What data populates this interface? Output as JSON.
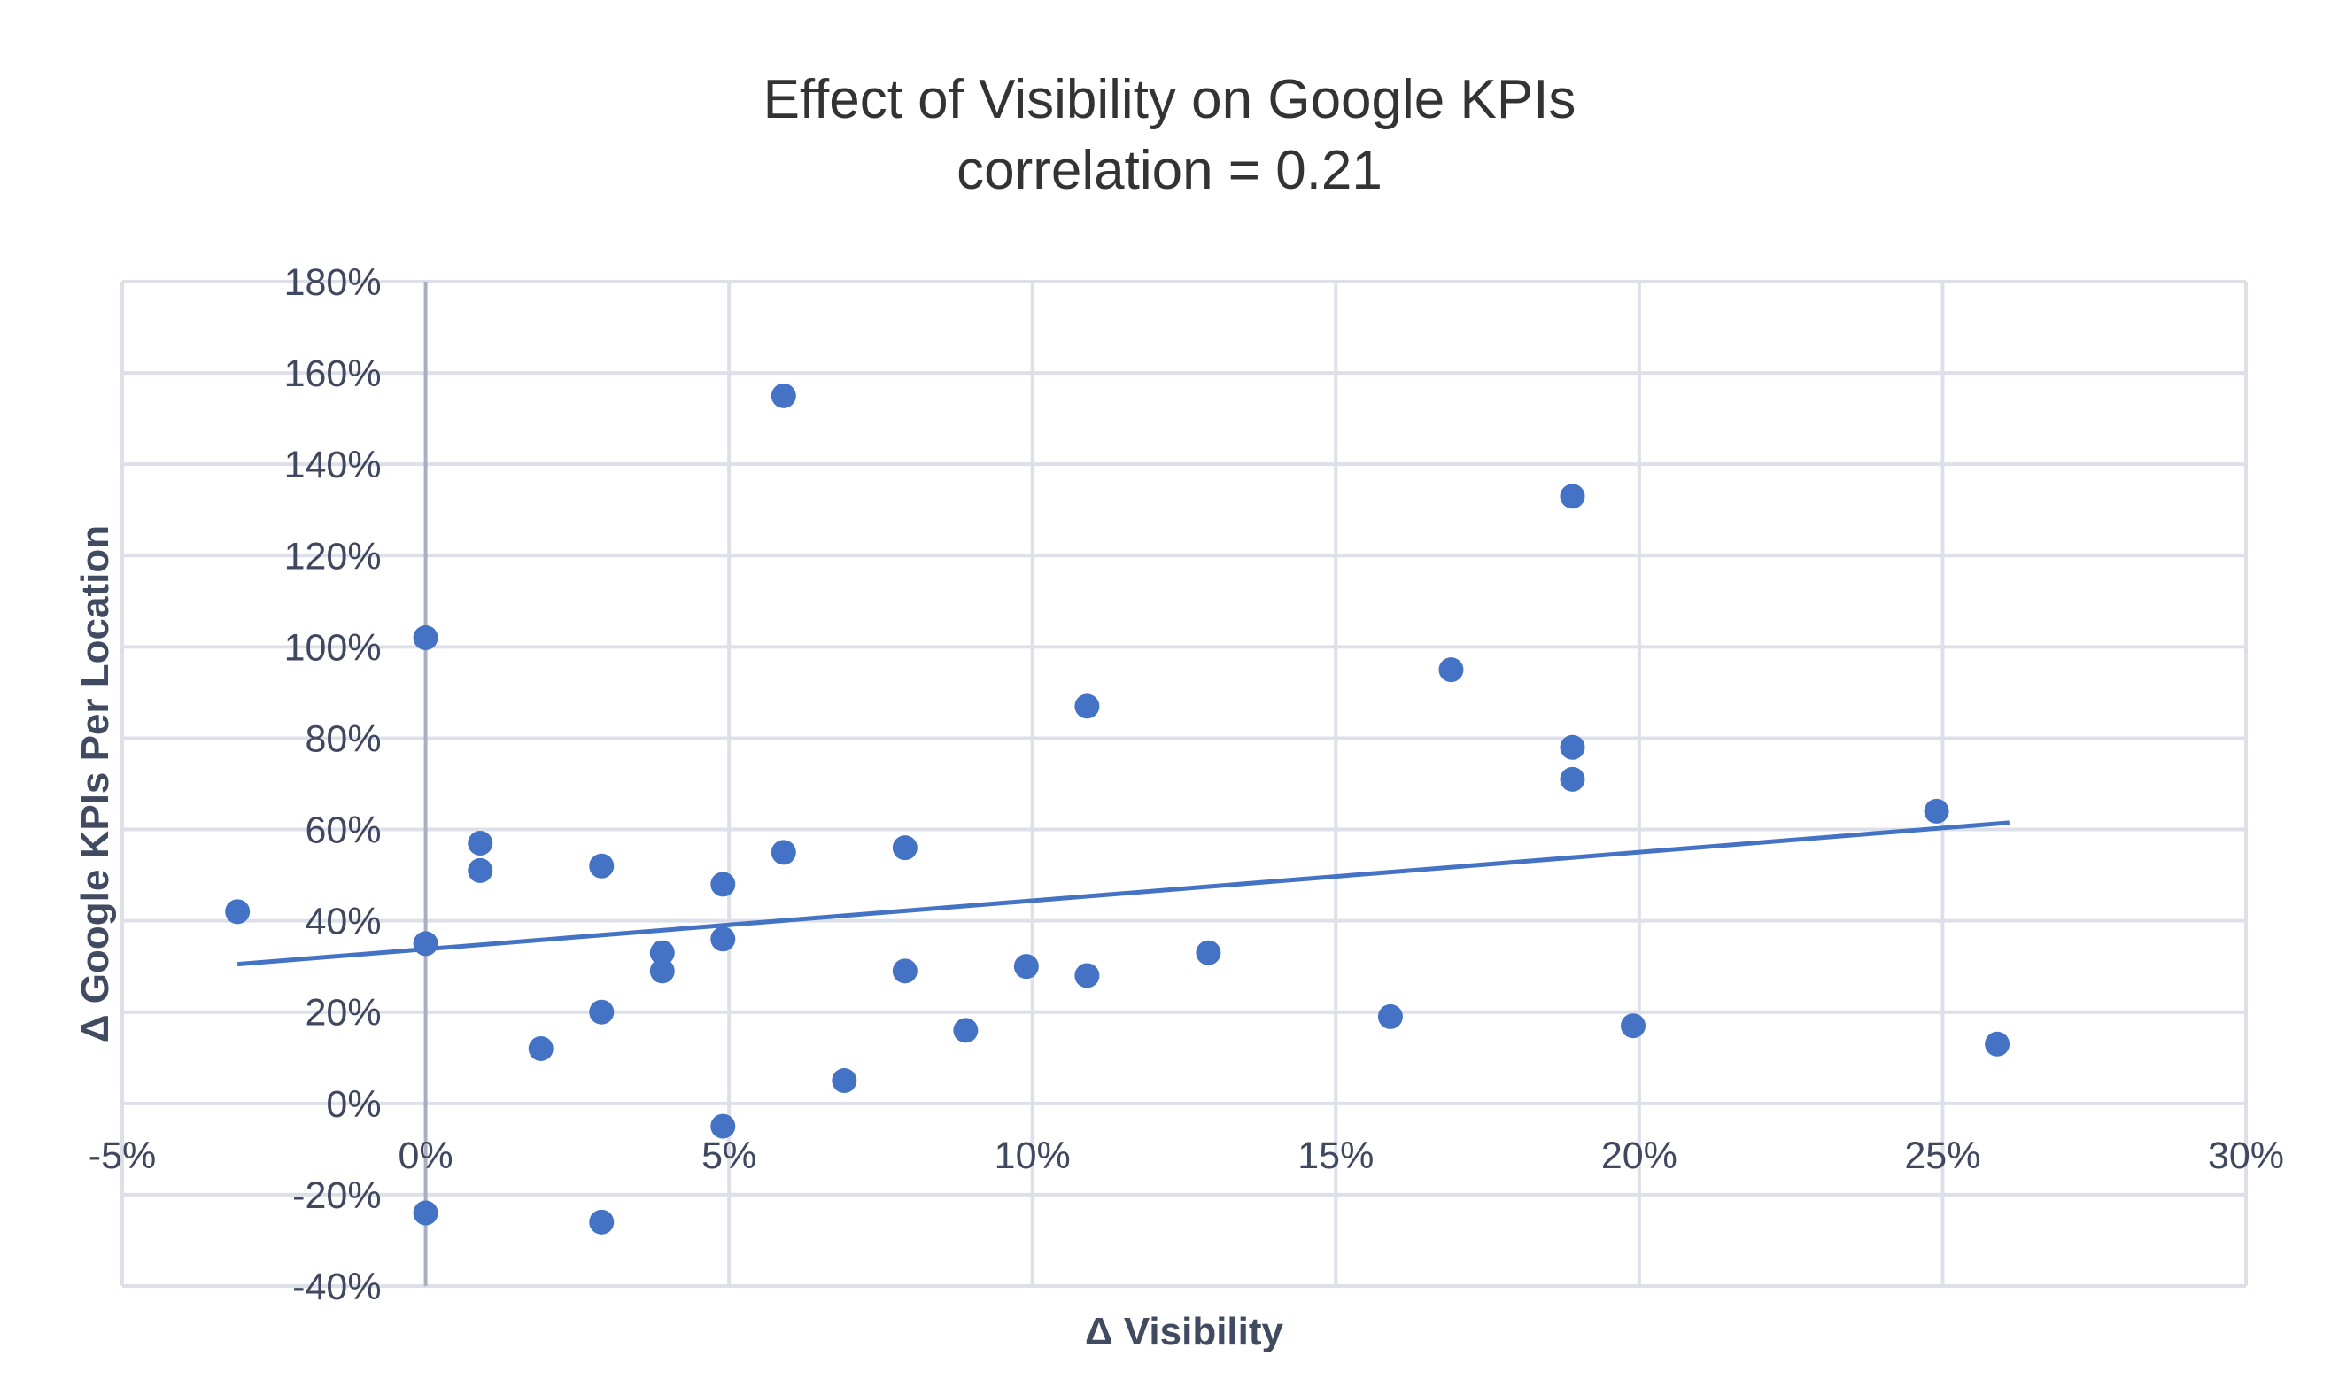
{
  "chart_data": {
    "type": "scatter",
    "title": "Effect of Visibility on Google KPIs",
    "subtitle": "correlation = 0.21",
    "xlabel": "Δ Visibility",
    "ylabel": "Δ Google KPIs Per Location",
    "xlim": [
      -5,
      30
    ],
    "ylim": [
      -40,
      180
    ],
    "x_ticks": [
      -5,
      0,
      5,
      10,
      15,
      20,
      25,
      30
    ],
    "y_ticks": [
      -40,
      -20,
      0,
      20,
      40,
      60,
      80,
      100,
      120,
      140,
      160,
      180
    ],
    "x_tick_labels": [
      "-5%",
      "0%",
      "5%",
      "10%",
      "15%",
      "20%",
      "25%",
      "30%"
    ],
    "y_tick_labels": [
      "-40%",
      "-20%",
      "0%",
      "20%",
      "40%",
      "60%",
      "80%",
      "100%",
      "120%",
      "140%",
      "160%",
      "180%"
    ],
    "grid": true,
    "series": [
      {
        "points": [
          {
            "x": -3.1,
            "y": 42
          },
          {
            "x": 0,
            "y": 102
          },
          {
            "x": 0,
            "y": 35
          },
          {
            "x": 0,
            "y": -24
          },
          {
            "x": 0.9,
            "y": 57
          },
          {
            "x": 0.9,
            "y": 51
          },
          {
            "x": 1.9,
            "y": 12
          },
          {
            "x": 2.9,
            "y": 52
          },
          {
            "x": 2.9,
            "y": 20
          },
          {
            "x": 2.9,
            "y": -26
          },
          {
            "x": 3.9,
            "y": 33
          },
          {
            "x": 3.9,
            "y": 29
          },
          {
            "x": 4.9,
            "y": 48
          },
          {
            "x": 4.9,
            "y": 36
          },
          {
            "x": 4.9,
            "y": -5
          },
          {
            "x": 5.9,
            "y": 155
          },
          {
            "x": 5.9,
            "y": 55
          },
          {
            "x": 6.9,
            "y": 5
          },
          {
            "x": 7.9,
            "y": 56
          },
          {
            "x": 7.9,
            "y": 29
          },
          {
            "x": 8.9,
            "y": 16
          },
          {
            "x": 9.9,
            "y": 30
          },
          {
            "x": 10.9,
            "y": 87
          },
          {
            "x": 10.9,
            "y": 28
          },
          {
            "x": 12.9,
            "y": 33
          },
          {
            "x": 15.9,
            "y": 19
          },
          {
            "x": 16.9,
            "y": 95
          },
          {
            "x": 18.9,
            "y": 133
          },
          {
            "x": 18.9,
            "y": 78
          },
          {
            "x": 18.9,
            "y": 71
          },
          {
            "x": 19.9,
            "y": 17
          },
          {
            "x": 24.9,
            "y": 64
          },
          {
            "x": 25.9,
            "y": 13
          }
        ]
      }
    ],
    "trendline": {
      "x1": -3.1,
      "y1": 30.5,
      "x2": 26.1,
      "y2": 61.5
    },
    "colors": {
      "marker": "#4472c4",
      "grid": "#dde0e8",
      "zero_axis": "#a8b0c0",
      "text": "#333333"
    }
  }
}
